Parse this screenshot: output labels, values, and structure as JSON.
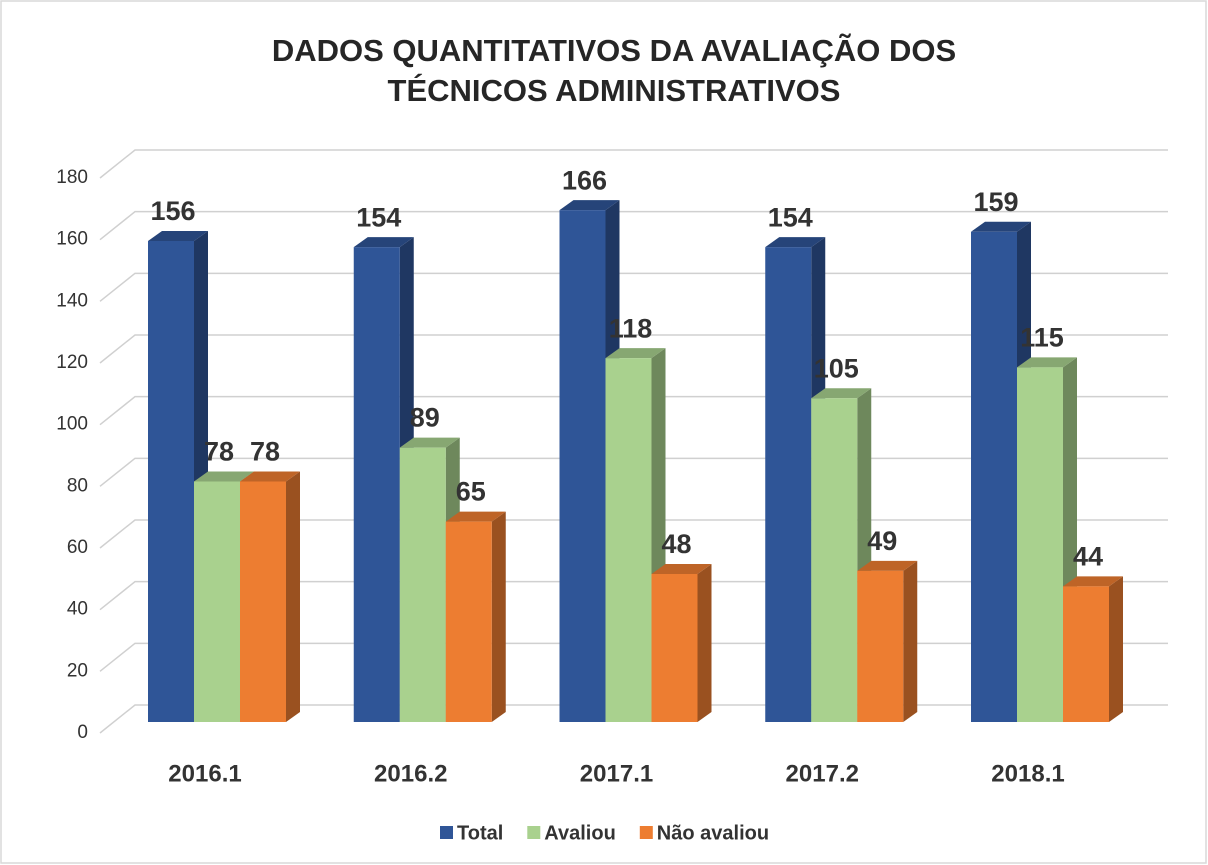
{
  "chart_data": {
    "type": "bar3d",
    "title": [
      "DADOS QUANTITATIVOS DA AVALIAÇÃO DOS",
      "TÉCNICOS ADMINISTRATIVOS"
    ],
    "categories": [
      "2016.1",
      "2016.2",
      "2017.1",
      "2017.2",
      "2018.1"
    ],
    "series": [
      {
        "name": "Total",
        "color": "#2f5597",
        "values": [
          156,
          154,
          166,
          154,
          159
        ]
      },
      {
        "name": "Avaliou",
        "color": "#a9d18e",
        "values": [
          78,
          89,
          118,
          105,
          115
        ]
      },
      {
        "name": "Não avaliou",
        "color": "#ed7d31",
        "values": [
          78,
          65,
          48,
          49,
          44
        ]
      }
    ],
    "ylim": [
      0,
      180
    ],
    "yticks": [
      0,
      20,
      40,
      60,
      80,
      100,
      120,
      140,
      160,
      180
    ],
    "grid": true,
    "legend": "bottom"
  }
}
